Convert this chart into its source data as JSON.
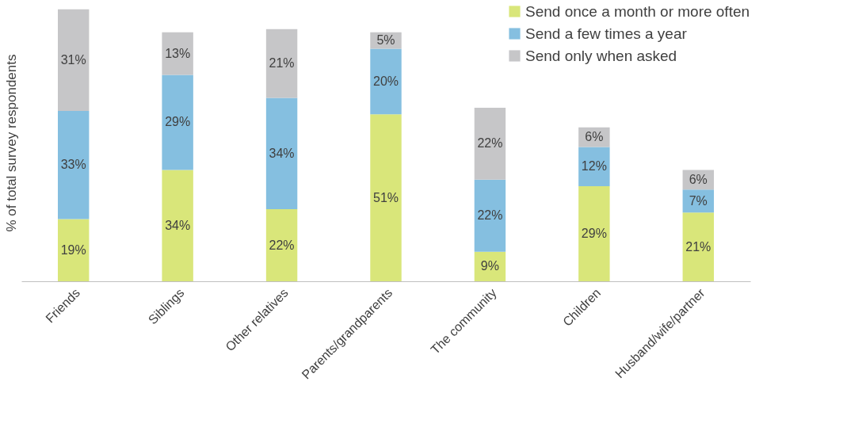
{
  "chart_data": {
    "type": "bar",
    "stacked": true,
    "ylabel": "% of total survey respondents",
    "legend": "top right",
    "categories": [
      "Friends",
      "Siblings",
      "Other relatives",
      "Parents/grandparents",
      "The community",
      "Children",
      "Husband/wife/partner"
    ],
    "series": [
      {
        "name": "Send once a month or more often",
        "color": "#d9e67a",
        "values": [
          19,
          34,
          22,
          51,
          9,
          29,
          21
        ],
        "value_labels": [
          "19%",
          "34%",
          "22%",
          "51%",
          "9%",
          "29%",
          "21%"
        ]
      },
      {
        "name": "Send a few times a year",
        "color": "#85bfe0",
        "values": [
          33,
          29,
          34,
          20,
          22,
          12,
          7
        ],
        "value_labels": [
          "33%",
          "29%",
          "34%",
          "20%",
          "22%",
          "12%",
          "7%"
        ]
      },
      {
        "name": "Send only when asked",
        "color": "#c6c6c8",
        "values": [
          31,
          13,
          21,
          5,
          22,
          6,
          6
        ],
        "value_labels": [
          "31%",
          "13%",
          "21%",
          "5%",
          "22%",
          "6%",
          "6%"
        ]
      }
    ]
  }
}
